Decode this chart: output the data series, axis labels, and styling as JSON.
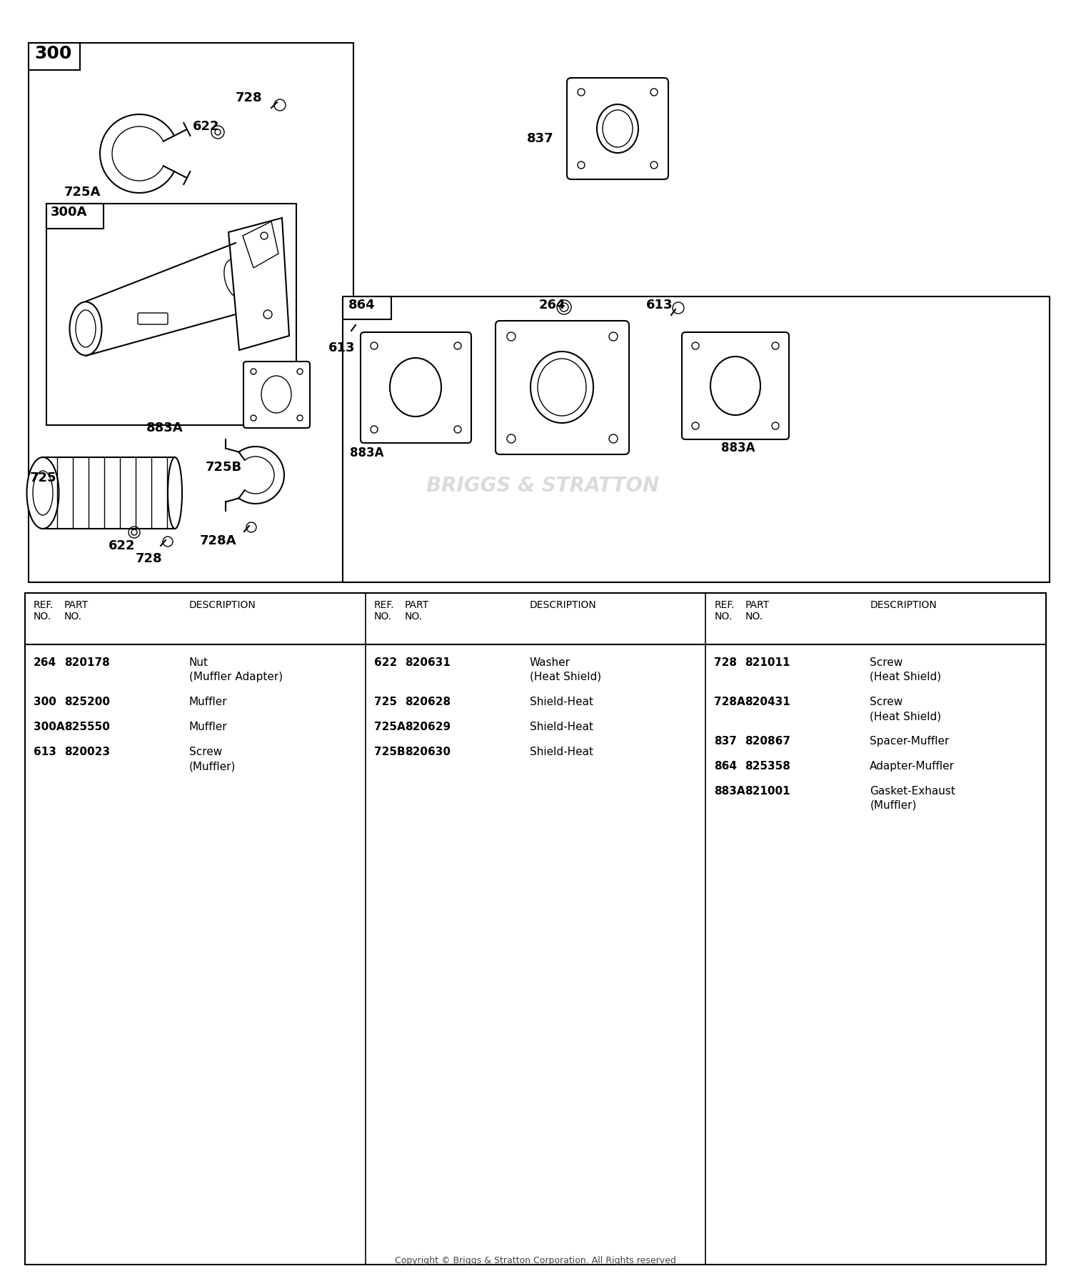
{
  "bg_color": "#ffffff",
  "copyright": "Copyright © Briggs & Stratton Corporation. All Rights reserved",
  "parts": [
    {
      "col": 0,
      "ref": "264",
      "part": "820178",
      "desc1": "Nut",
      "desc2": "(Muffler Adapter)"
    },
    {
      "col": 0,
      "ref": "300",
      "part": "825200",
      "desc1": "Muffler",
      "desc2": ""
    },
    {
      "col": 0,
      "ref": "300A",
      "part": "825550",
      "desc1": "Muffler",
      "desc2": ""
    },
    {
      "col": 0,
      "ref": "613",
      "part": "820023",
      "desc1": "Screw",
      "desc2": "(Muffler)"
    },
    {
      "col": 1,
      "ref": "622",
      "part": "820631",
      "desc1": "Washer",
      "desc2": "(Heat Shield)"
    },
    {
      "col": 1,
      "ref": "725",
      "part": "820628",
      "desc1": "Shield-Heat",
      "desc2": ""
    },
    {
      "col": 1,
      "ref": "725A",
      "part": "820629",
      "desc1": "Shield-Heat",
      "desc2": ""
    },
    {
      "col": 1,
      "ref": "725B",
      "part": "820630",
      "desc1": "Shield-Heat",
      "desc2": ""
    },
    {
      "col": 2,
      "ref": "728",
      "part": "821011",
      "desc1": "Screw",
      "desc2": "(Heat Shield)"
    },
    {
      "col": 2,
      "ref": "728A",
      "part": "820431",
      "desc1": "Screw",
      "desc2": "(Heat Shield)"
    },
    {
      "col": 2,
      "ref": "837",
      "part": "820867",
      "desc1": "Spacer-Muffler",
      "desc2": ""
    },
    {
      "col": 2,
      "ref": "864",
      "part": "825358",
      "desc1": "Adapter-Muffler",
      "desc2": ""
    },
    {
      "col": 2,
      "ref": "883A",
      "part": "821001",
      "desc1": "Gasket-Exhaust",
      "desc2": "(Muffler)"
    }
  ]
}
